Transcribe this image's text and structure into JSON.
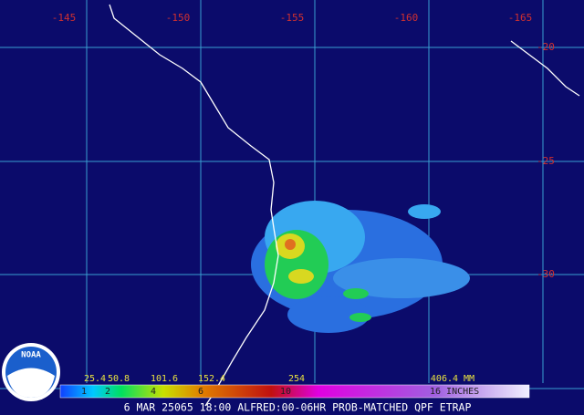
{
  "map": {
    "lon_labels": [
      "-145",
      "-150",
      "-155",
      "-160",
      "-165"
    ],
    "lat_labels": [
      "-20",
      "-25",
      "-30"
    ],
    "legend": {
      "mm_labels": [
        "25.4",
        "50.8",
        "101.6",
        "152.4",
        "254",
        "406.4 MM"
      ],
      "inch_labels": [
        "1",
        "2",
        "4",
        "6",
        "10",
        "16 INCHES"
      ]
    },
    "logo": "NOAA",
    "caption": "6 MAR 25065 18:00 ALFRED:00-06HR PROB-MATCHED QPF ETRAP"
  }
}
